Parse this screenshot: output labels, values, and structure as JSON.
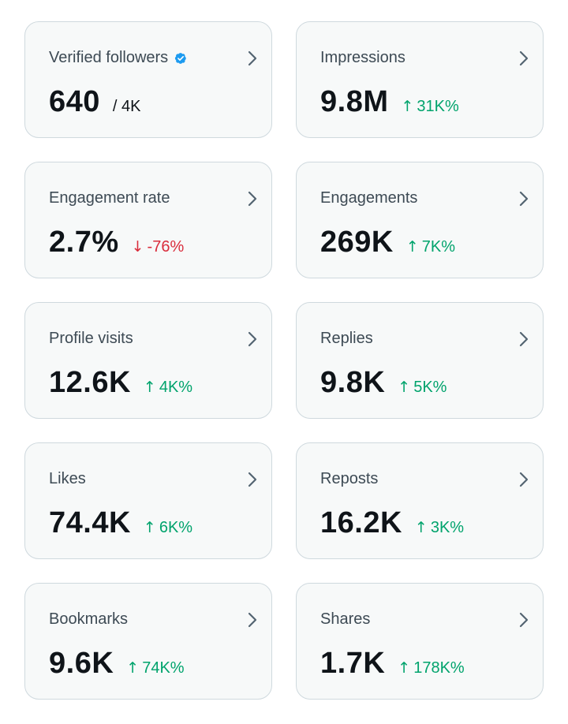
{
  "colors": {
    "card_bg": "#f7f9f9",
    "card_border": "#cfd9de",
    "title": "#3d4a54",
    "value": "#0f1419",
    "positive": "#00a36c",
    "negative": "#d92d3c",
    "verified": "#1d9bf0",
    "chevron": "#536471"
  },
  "cards": [
    {
      "title": "Verified followers",
      "value": "640",
      "sub": "/ 4K",
      "verified": true,
      "icon": "chevron-right-icon"
    },
    {
      "title": "Impressions",
      "value": "9.8M",
      "change": "31K%",
      "direction": "up",
      "icon": "chevron-right-icon"
    },
    {
      "title": "Engagement rate",
      "value": "2.7%",
      "change": "-76%",
      "direction": "down",
      "icon": "chevron-right-icon"
    },
    {
      "title": "Engagements",
      "value": "269K",
      "change": "7K%",
      "direction": "up",
      "icon": "chevron-right-icon"
    },
    {
      "title": "Profile visits",
      "value": "12.6K",
      "change": "4K%",
      "direction": "up",
      "icon": "chevron-right-icon"
    },
    {
      "title": "Replies",
      "value": "9.8K",
      "change": "5K%",
      "direction": "up",
      "icon": "chevron-right-icon"
    },
    {
      "title": "Likes",
      "value": "74.4K",
      "change": "6K%",
      "direction": "up",
      "icon": "chevron-right-icon"
    },
    {
      "title": "Reposts",
      "value": "16.2K",
      "change": "3K%",
      "direction": "up",
      "icon": "chevron-right-icon"
    },
    {
      "title": "Bookmarks",
      "value": "9.6K",
      "change": "74K%",
      "direction": "up",
      "icon": "chevron-right-icon"
    },
    {
      "title": "Shares",
      "value": "1.7K",
      "change": "178K%",
      "direction": "up",
      "icon": "chevron-right-icon"
    }
  ]
}
